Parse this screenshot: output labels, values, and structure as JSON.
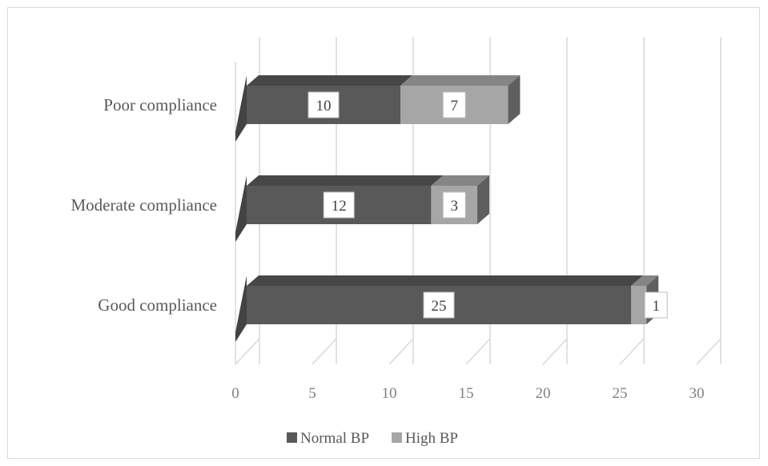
{
  "chart_data": {
    "type": "bar",
    "orientation": "horizontal",
    "stacked": true,
    "three_d": true,
    "categories": [
      "Poor compliance",
      "Moderate compliance",
      "Good compliance"
    ],
    "series": [
      {
        "name": "Normal BP",
        "values": [
          10,
          12,
          25
        ],
        "color": "#595959"
      },
      {
        "name": "High BP",
        "values": [
          7,
          3,
          1
        ],
        "color": "#a6a6a6"
      }
    ],
    "xlim": [
      0,
      30
    ],
    "xticks": [
      "0",
      "5",
      "10",
      "15",
      "20",
      "25",
      "30"
    ],
    "grid": true,
    "legend": "bottom"
  }
}
